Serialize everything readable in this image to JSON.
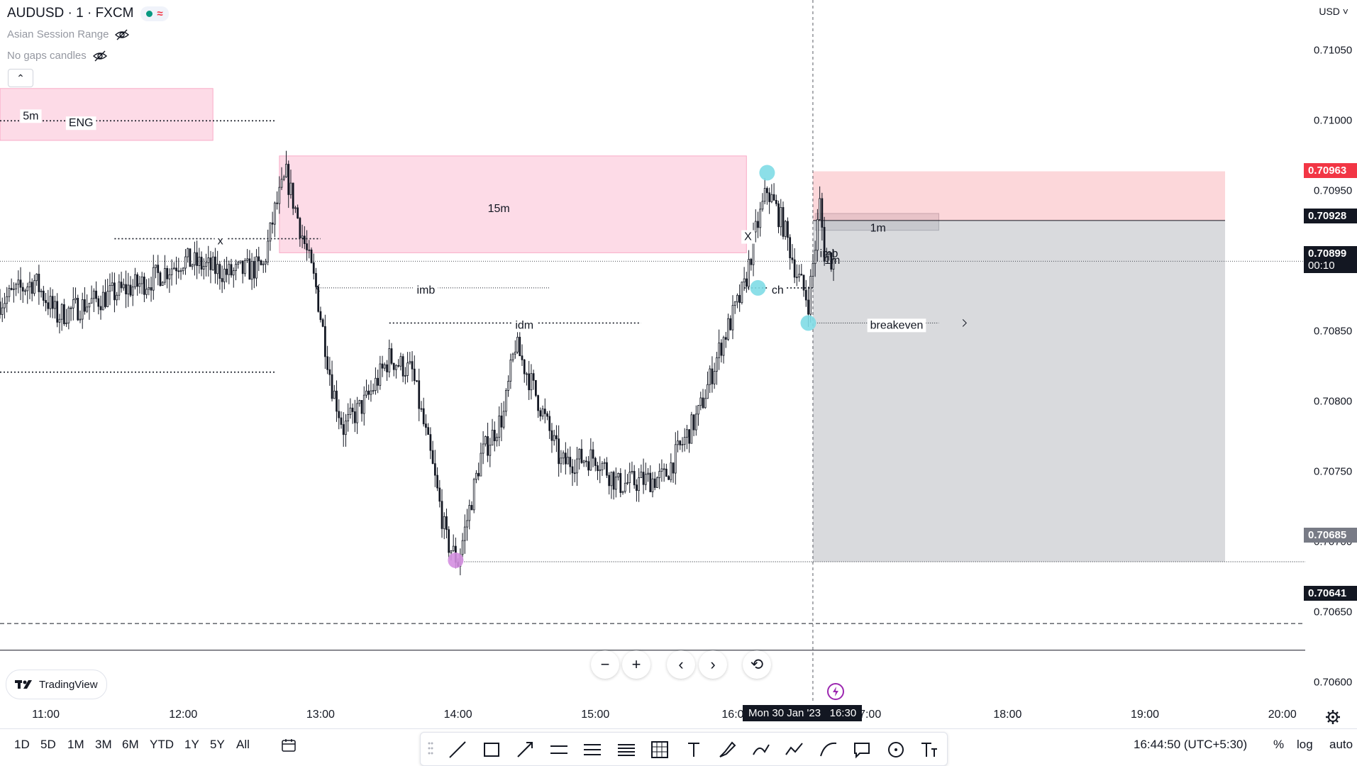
{
  "symbol": {
    "title": "AUDUSD · 1 · FXCM",
    "status_icon": "market-open-dot",
    "wave_icon": "≈"
  },
  "indicators": [
    {
      "label": "Asian Session Range",
      "icon": "eye-off-icon"
    },
    {
      "label": "No gaps candles",
      "icon": "eye-off-icon"
    }
  ],
  "currency": "USD",
  "price_axis": {
    "ticks": [
      "0.71050",
      "0.71000",
      "0.70950",
      "0.70850",
      "0.70800",
      "0.70750",
      "0.70700",
      "0.70650",
      "0.70600"
    ],
    "tags": [
      {
        "name": "stop-price",
        "value": "0.70963",
        "color": "#f23645"
      },
      {
        "name": "entry-price",
        "value": "0.70928",
        "color": "#131722"
      },
      {
        "name": "last-price",
        "value": "0.70899",
        "sub": "00:10",
        "color": "#131722"
      },
      {
        "name": "target-price",
        "value": "0.70685",
        "color": "#787b86"
      },
      {
        "name": "level-price",
        "value": "0.70641",
        "color": "#131722"
      }
    ]
  },
  "time_axis": {
    "ticks": [
      "11:00",
      "12:00",
      "13:00",
      "14:00",
      "15:00",
      "16:0",
      "7:00",
      "18:00",
      "19:00",
      "20:00"
    ],
    "crosshair_date": "Mon 30 Jan '23",
    "crosshair_time": "16:30"
  },
  "annotations": {
    "box_5m": "5m",
    "eng": "ENG",
    "x_left": "x",
    "box_15m": "15m",
    "imb_left": "imb",
    "idm": "idm",
    "x_right": "X",
    "imb_right": "imb",
    "box_1m": "1m",
    "box_1m_small": "1m",
    "ch": "ch",
    "breakeven": "breakeven"
  },
  "chart_data": {
    "type": "candlestick",
    "symbol": "AUDUSD",
    "interval": "1",
    "x_range": [
      "10:40",
      "20:10"
    ],
    "y_range": [
      0.70585,
      0.71085
    ],
    "close_path": [
      [
        "10:40",
        0.7087
      ],
      [
        "10:55",
        0.70885
      ],
      [
        "11:05",
        0.7086
      ],
      [
        "11:20",
        0.7087
      ],
      [
        "11:45",
        0.70885
      ],
      [
        "12:00",
        0.709
      ],
      [
        "12:20",
        0.7089
      ],
      [
        "12:35",
        0.70895
      ],
      [
        "12:40",
        0.70935
      ],
      [
        "12:45",
        0.7096
      ],
      [
        "12:50",
        0.7093
      ],
      [
        "12:58",
        0.7088
      ],
      [
        "13:05",
        0.7081
      ],
      [
        "13:10",
        0.7078
      ],
      [
        "13:20",
        0.708
      ],
      [
        "13:30",
        0.7083
      ],
      [
        "13:40",
        0.7082
      ],
      [
        "13:48",
        0.7076
      ],
      [
        "13:55",
        0.707
      ],
      [
        "14:00",
        0.70685
      ],
      [
        "14:10",
        0.7076
      ],
      [
        "14:20",
        0.7079
      ],
      [
        "14:25",
        0.7084
      ],
      [
        "14:35",
        0.708
      ],
      [
        "14:45",
        0.70755
      ],
      [
        "15:00",
        0.7076
      ],
      [
        "15:10",
        0.7074
      ],
      [
        "15:30",
        0.70745
      ],
      [
        "15:45",
        0.7079
      ],
      [
        "15:55",
        0.7084
      ],
      [
        "16:05",
        0.7088
      ],
      [
        "16:10",
        0.7092
      ],
      [
        "16:15",
        0.7095
      ],
      [
        "16:22",
        0.70925
      ],
      [
        "16:28",
        0.7089
      ],
      [
        "16:33",
        0.7087
      ],
      [
        "16:36",
        0.7091
      ],
      [
        "16:38",
        0.7094
      ],
      [
        "16:40",
        0.70905
      ],
      [
        "16:44",
        0.70899
      ]
    ],
    "position": {
      "type": "short",
      "entry": 0.70928,
      "stop": 0.70963,
      "target": 0.70685
    },
    "zones": [
      {
        "label": "5m",
        "top": 0.71022,
        "bottom": 0.70985
      },
      {
        "label": "15m",
        "top": 0.70974,
        "bottom": 0.70905
      },
      {
        "label": "1m",
        "top": 0.70933,
        "bottom": 0.70921
      }
    ],
    "levels": [
      {
        "label": "ENG",
        "price": 0.70999
      },
      {
        "label": "x",
        "price": 0.70915
      },
      {
        "label": "imb",
        "price": 0.7088
      },
      {
        "label": "idm",
        "price": 0.70855
      },
      {
        "label": "ch",
        "price": 0.7088
      },
      {
        "label": "breakeven",
        "price": 0.70855
      },
      {
        "label": "",
        "price": 0.7082
      },
      {
        "label": "",
        "price": 0.70685
      },
      {
        "label": "",
        "price": 0.70641
      }
    ]
  },
  "navigation": {
    "zoom_out": "−",
    "zoom_in": "+",
    "scroll_left": "‹",
    "scroll_right": "›",
    "reset": "⟲"
  },
  "branding": "TradingView",
  "date_ranges": [
    "1D",
    "5D",
    "1M",
    "3M",
    "6M",
    "YTD",
    "1Y",
    "5Y",
    "All"
  ],
  "drawing_tools": [
    "trend-line-icon",
    "rectangle-icon",
    "arrow-icon",
    "parallel-channel-icon",
    "fib-icon",
    "regression-icon",
    "gann-box-icon",
    "text-icon",
    "brush-icon",
    "pen-icon",
    "path-icon",
    "curve-icon",
    "callout-icon",
    "circle-icon",
    "text-size-icon"
  ],
  "clock": "16:44:50 (UTC+5:30)",
  "scale_options": [
    "%",
    "log",
    "auto"
  ]
}
